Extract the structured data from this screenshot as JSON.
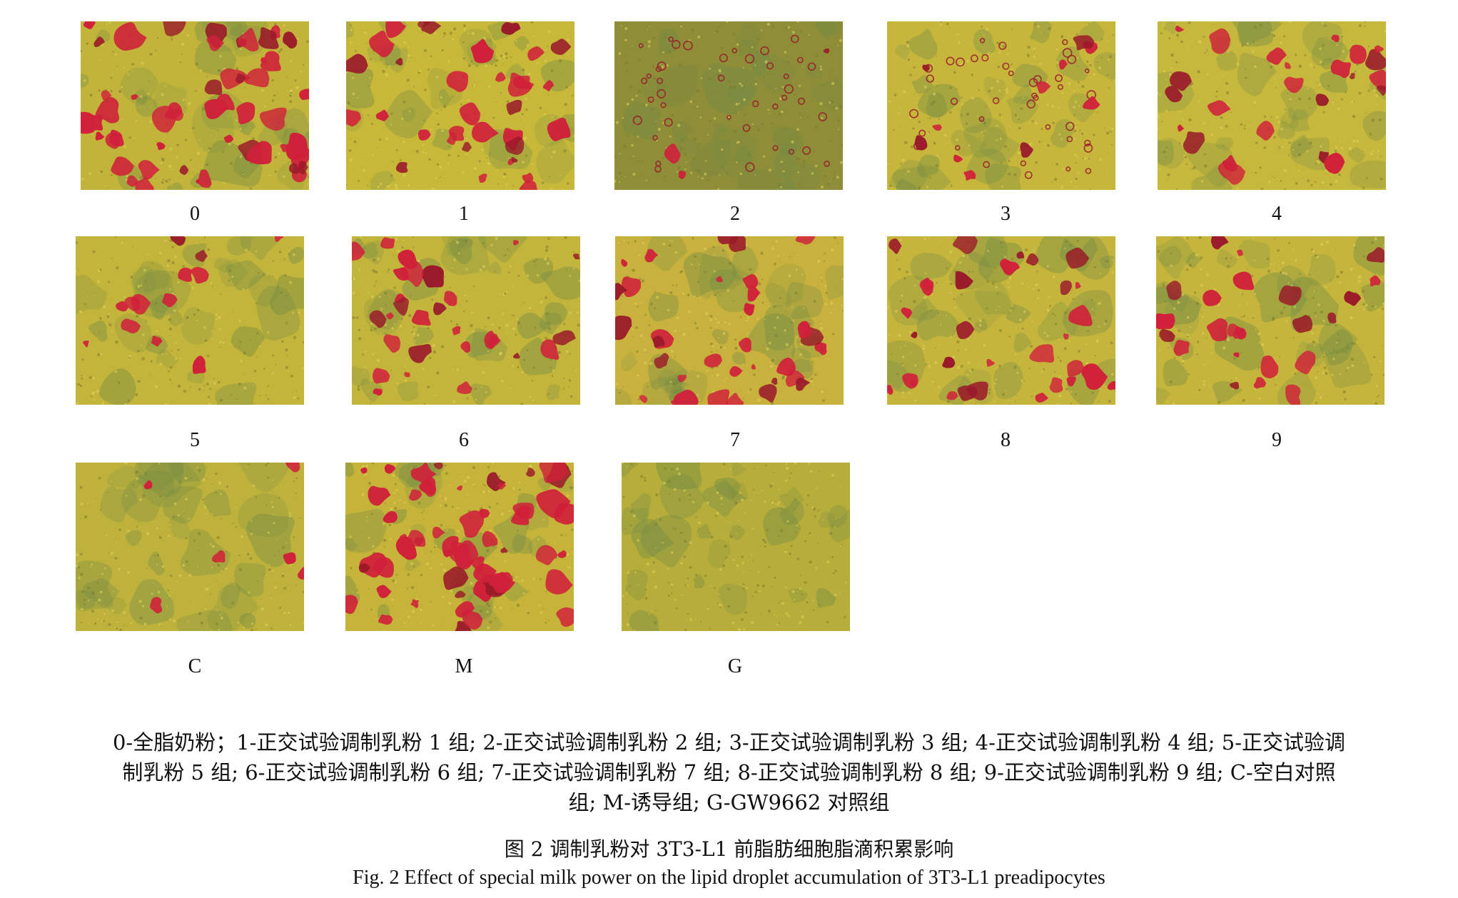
{
  "figure": {
    "panels": [
      {
        "label": "0",
        "red_coverage": 0.45,
        "tint": "#c2b43a"
      },
      {
        "label": "1",
        "red_coverage": 0.3,
        "tint": "#c8b83a"
      },
      {
        "label": "2",
        "red_coverage": 0.03,
        "tint": "#8e8d38",
        "rings": true
      },
      {
        "label": "3",
        "red_coverage": 0.1,
        "tint": "#c7b63c",
        "rings": true
      },
      {
        "label": "4",
        "red_coverage": 0.22,
        "tint": "#c6b73d"
      },
      {
        "label": "5",
        "red_coverage": 0.12,
        "tint": "#c3b43b"
      },
      {
        "label": "6",
        "red_coverage": 0.25,
        "tint": "#c3b43c"
      },
      {
        "label": "7",
        "red_coverage": 0.3,
        "tint": "#c8b23d"
      },
      {
        "label": "8",
        "red_coverage": 0.28,
        "tint": "#c6b53c"
      },
      {
        "label": "9",
        "red_coverage": 0.22,
        "tint": "#c6b53c"
      },
      {
        "label": "C",
        "red_coverage": 0.05,
        "tint": "#bfb23c"
      },
      {
        "label": "M",
        "red_coverage": 0.5,
        "tint": "#c6b43a"
      },
      {
        "label": "G",
        "red_coverage": 0.0,
        "tint": "#b7ad3a"
      }
    ],
    "legend_lines": [
      "0-全脂奶粉；1-正交试验调制乳粉 1 组; 2-正交试验调制乳粉 2 组; 3-正交试验调制乳粉 3 组; 4-正交试验调制乳粉 4 组; 5-正交试验调",
      "制乳粉 5 组; 6-正交试验调制乳粉 6 组; 7-正交试验调制乳粉 7 组; 8-正交试验调制乳粉 8 组; 9-正交试验调制乳粉 9 组; C-空白对照",
      "组; M-诱导组; G-GW9662 对照组"
    ],
    "caption_cn": "图 2  调制乳粉对 3T3-L1 前脂肪细胞脂滴积累影响",
    "caption_en": "Fig. 2 Effect of special milk power on the lipid droplet accumulation of 3T3-L1 preadipocytes",
    "colors": {
      "stain_red": "#d0203a",
      "stain_dark": "#9a1a2a",
      "cell_green": "#6f8a45",
      "background_yellow": "#c6b63c"
    }
  }
}
